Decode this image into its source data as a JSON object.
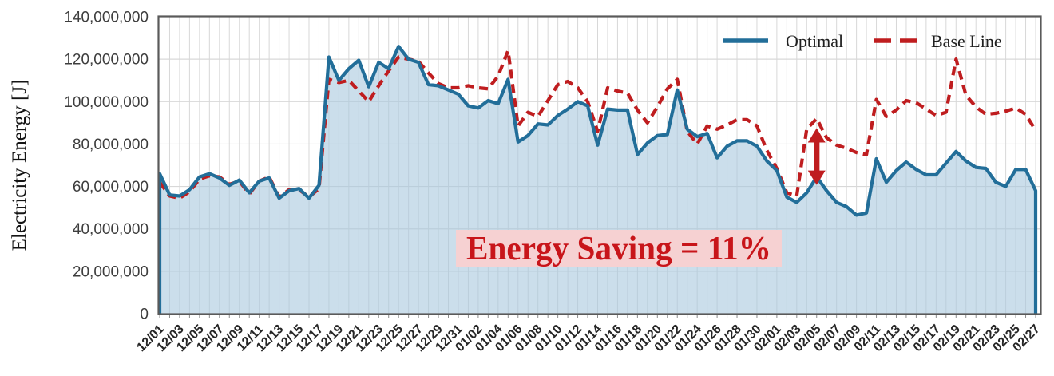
{
  "y_axis": {
    "title": "Electricity Energy [J]",
    "tick_labels": [
      "0",
      "20,000,000",
      "40,000,000",
      "60,000,000",
      "80,000,000",
      "100,000,000",
      "120,000,000",
      "140,000,000"
    ]
  },
  "legend": {
    "optimal": "Optimal",
    "baseline": "Base Line"
  },
  "annotation": {
    "text": "Energy Saving = 11%"
  },
  "colors": {
    "optimal_line": "#226E99",
    "baseline_line": "#BF1D1F",
    "area_fill": "#A8C8DD",
    "annotation_text": "#C8151A",
    "annotation_bg": "#F6D1D2",
    "arrow": "#BF1D1F",
    "gridline": "#D8D8D8",
    "plot_border": "#5A5A5A",
    "tick_mark": "#8C8C8C"
  },
  "chart_data": {
    "type": "area",
    "title": "",
    "xlabel": "",
    "ylabel": "Electricity Energy [J]",
    "ylim": [
      0,
      140000000
    ],
    "ytick_step": 20000000,
    "grid": true,
    "legend_position": "top-right",
    "x_label_every": 2,
    "annotation": {
      "text": "Energy Saving = 11%",
      "arrow_at_date": "02/05"
    },
    "x": [
      "12/01",
      "12/02",
      "12/03",
      "12/04",
      "12/05",
      "12/06",
      "12/07",
      "12/08",
      "12/09",
      "12/10",
      "12/11",
      "12/12",
      "12/13",
      "12/14",
      "12/15",
      "12/16",
      "12/17",
      "12/18",
      "12/19",
      "12/20",
      "12/21",
      "12/22",
      "12/23",
      "12/24",
      "12/25",
      "12/26",
      "12/27",
      "12/28",
      "12/29",
      "12/30",
      "12/31",
      "01/01",
      "01/02",
      "01/03",
      "01/04",
      "01/05",
      "01/06",
      "01/07",
      "01/08",
      "01/09",
      "01/10",
      "01/11",
      "01/12",
      "01/13",
      "01/14",
      "01/15",
      "01/16",
      "01/17",
      "01/18",
      "01/19",
      "01/20",
      "01/21",
      "01/22",
      "01/23",
      "01/24",
      "01/25",
      "01/26",
      "01/27",
      "01/28",
      "01/29",
      "01/30",
      "01/31",
      "02/01",
      "02/02",
      "02/03",
      "02/04",
      "02/05",
      "02/06",
      "02/07",
      "02/08",
      "02/09",
      "02/10",
      "02/11",
      "02/12",
      "02/13",
      "02/14",
      "02/15",
      "02/16",
      "02/17",
      "02/18",
      "02/19",
      "02/20",
      "02/21",
      "02/22",
      "02/23",
      "02/24",
      "02/25",
      "02/26",
      "02/27"
    ],
    "series": [
      {
        "name": "Optimal",
        "style": "solid",
        "color": "#226E99",
        "values": [
          66000000,
          56000000,
          55500000,
          58500000,
          64500000,
          66000000,
          64000000,
          60500000,
          63000000,
          57000000,
          62500000,
          64000000,
          54500000,
          58000000,
          59000000,
          54500000,
          60500000,
          121000000,
          110000000,
          115500000,
          119500000,
          107000000,
          118500000,
          115500000,
          126000000,
          120000000,
          118500000,
          108000000,
          107500000,
          105500000,
          103500000,
          98000000,
          97000000,
          100500000,
          99000000,
          110500000,
          81000000,
          84000000,
          89500000,
          89000000,
          93500000,
          96500000,
          100000000,
          98000000,
          79500000,
          96500000,
          96000000,
          96000000,
          75000000,
          80500000,
          84000000,
          84500000,
          105500000,
          87000000,
          83500000,
          85000000,
          73500000,
          79000000,
          81500000,
          81500000,
          79000000,
          72000000,
          67500000,
          55000000,
          52500000,
          57000000,
          64500000,
          58000000,
          52500000,
          50500000,
          46500000,
          47500000,
          73000000,
          62000000,
          67500000,
          71500000,
          68000000,
          65500000,
          65500000,
          71000000,
          76500000,
          72000000,
          69000000,
          68500000,
          62000000,
          60000000,
          68000000,
          68000000,
          58000000
        ]
      },
      {
        "name": "Base Line",
        "style": "dashed",
        "color": "#BF1D1F",
        "values": [
          62000000,
          55500000,
          54500000,
          57500000,
          63500000,
          65000000,
          64500000,
          61000000,
          62500000,
          56500000,
          62500000,
          64500000,
          55000000,
          58500000,
          58500000,
          55000000,
          59000000,
          110500000,
          109000000,
          110000000,
          105000000,
          100000000,
          107500000,
          114500000,
          121000000,
          120000000,
          119000000,
          113500000,
          108500000,
          106500000,
          106500000,
          107500000,
          106500000,
          106000000,
          112000000,
          124000000,
          88500000,
          95000000,
          93000000,
          100500000,
          108000000,
          109500000,
          106500000,
          100000000,
          86000000,
          106500000,
          105000000,
          104000000,
          96000000,
          90000000,
          97500000,
          106000000,
          110500000,
          86000000,
          80000000,
          88500000,
          87000000,
          89000000,
          91500000,
          91500000,
          88500000,
          77000000,
          68500000,
          57000000,
          55500000,
          87000000,
          92000000,
          83000000,
          79500000,
          78000000,
          76000000,
          75000000,
          101000000,
          93000000,
          96000000,
          100500000,
          99500000,
          96500000,
          93500000,
          95000000,
          120000000,
          103000000,
          97500000,
          94000000,
          94500000,
          95500000,
          97000000,
          94000000,
          86500000
        ]
      }
    ]
  }
}
